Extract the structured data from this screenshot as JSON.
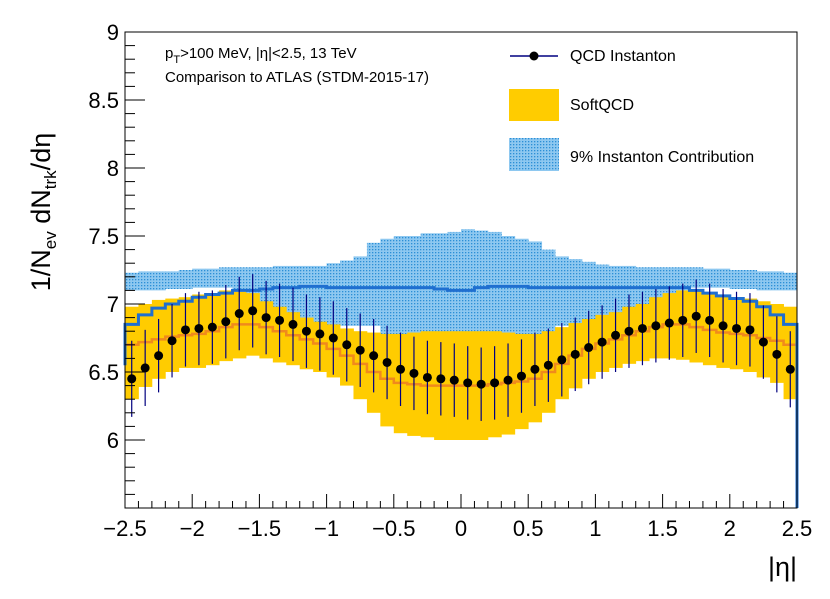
{
  "chart_data": {
    "type": "line",
    "title": "",
    "xlabel": "|η|",
    "ylabel_main": "1/N",
    "ylabel_sub1": "ev",
    "ylabel_mid": " dN",
    "ylabel_sub2": "trk",
    "ylabel_end": "/dη",
    "xlim": [
      -2.5,
      2.5
    ],
    "ylim": [
      5.5,
      9.0
    ],
    "x_ticks": [
      -2.5,
      -2,
      -1.5,
      -1,
      -0.5,
      0,
      0.5,
      1,
      1.5,
      2,
      2.5
    ],
    "x_tick_labels": [
      "−2.5",
      "−2",
      "−1.5",
      "−1",
      "−0.5",
      "0",
      "0.5",
      "1",
      "1.5",
      "2",
      "2.5"
    ],
    "y_ticks": [
      6,
      6.5,
      7,
      7.5,
      8,
      8.5,
      9
    ],
    "y_tick_labels": [
      "6",
      "6.5",
      "7",
      "7.5",
      "8",
      "8.5",
      "9"
    ],
    "annotations": {
      "pt_prefix": "p",
      "pt_sub": "T",
      "pt_rest": ">100 MeV, |η|<2.5, 13 TeV",
      "line2": "Comparison to ATLAS (STDM-2015-17)"
    },
    "legend": [
      {
        "label": "QCD Instanton",
        "color": "#000080"
      },
      {
        "label": "SoftQCD",
        "color": "#ffcc00"
      },
      {
        "label": "9% Instanton Contribution",
        "color": "#4aa3df"
      }
    ],
    "bin_edges_start": -2.5,
    "bin_width": 0.1,
    "series": [
      {
        "name": "QCD Instanton",
        "x": [
          -2.45,
          -2.35,
          -2.25,
          -2.15,
          -2.05,
          -1.95,
          -1.85,
          -1.75,
          -1.65,
          -1.55,
          -1.45,
          -1.35,
          -1.25,
          -1.15,
          -1.05,
          -0.95,
          -0.85,
          -0.75,
          -0.65,
          -0.55,
          -0.45,
          -0.35,
          -0.25,
          -0.15,
          -0.05,
          0.05,
          0.15,
          0.25,
          0.35,
          0.45,
          0.55,
          0.65,
          0.75,
          0.85,
          0.95,
          1.05,
          1.15,
          1.25,
          1.35,
          1.45,
          1.55,
          1.65,
          1.75,
          1.85,
          1.95,
          2.05,
          2.15,
          2.25,
          2.35,
          2.45
        ],
        "values": [
          6.45,
          6.53,
          6.62,
          6.73,
          6.81,
          6.82,
          6.83,
          6.87,
          6.93,
          6.95,
          6.9,
          6.88,
          6.85,
          6.8,
          6.78,
          6.75,
          6.7,
          6.66,
          6.62,
          6.57,
          6.52,
          6.49,
          6.46,
          6.45,
          6.44,
          6.42,
          6.41,
          6.42,
          6.44,
          6.47,
          6.52,
          6.55,
          6.59,
          6.63,
          6.68,
          6.72,
          6.77,
          6.8,
          6.82,
          6.84,
          6.86,
          6.88,
          6.91,
          6.88,
          6.84,
          6.82,
          6.81,
          6.72,
          6.63,
          6.52
        ],
        "errors": [
          0.28,
          0.28,
          0.27,
          0.27,
          0.27,
          0.27,
          0.27,
          0.27,
          0.27,
          0.27,
          0.27,
          0.27,
          0.27,
          0.27,
          0.27,
          0.27,
          0.27,
          0.27,
          0.27,
          0.27,
          0.27,
          0.27,
          0.27,
          0.27,
          0.27,
          0.27,
          0.27,
          0.27,
          0.27,
          0.27,
          0.27,
          0.27,
          0.27,
          0.27,
          0.27,
          0.27,
          0.27,
          0.27,
          0.27,
          0.27,
          0.27,
          0.27,
          0.27,
          0.27,
          0.27,
          0.27,
          0.27,
          0.27,
          0.28,
          0.28
        ]
      },
      {
        "name": "SoftQCD",
        "low": [
          6.3,
          6.39,
          6.45,
          6.5,
          6.53,
          6.53,
          6.55,
          6.58,
          6.6,
          6.62,
          6.6,
          6.57,
          6.55,
          6.52,
          6.5,
          6.46,
          6.4,
          6.3,
          6.2,
          6.1,
          6.05,
          6.03,
          6.02,
          6.0,
          6.0,
          6.0,
          6.0,
          6.02,
          6.04,
          6.08,
          6.13,
          6.2,
          6.3,
          6.38,
          6.45,
          6.5,
          6.53,
          6.56,
          6.58,
          6.6,
          6.6,
          6.59,
          6.57,
          6.55,
          6.53,
          6.52,
          6.5,
          6.46,
          6.42,
          6.3
        ],
        "high": [
          6.98,
          7.0,
          7.03,
          7.04,
          7.05,
          7.07,
          7.08,
          7.1,
          7.09,
          7.08,
          7.02,
          6.98,
          6.94,
          6.9,
          6.87,
          6.85,
          6.82,
          6.8,
          6.79,
          6.78,
          6.78,
          6.79,
          6.8,
          6.8,
          6.8,
          6.8,
          6.8,
          6.8,
          6.79,
          6.78,
          6.78,
          6.8,
          6.83,
          6.86,
          6.89,
          6.92,
          6.94,
          6.98,
          7.0,
          7.05,
          7.08,
          7.1,
          7.1,
          7.08,
          7.06,
          7.05,
          7.04,
          7.02,
          7.0,
          6.98
        ],
        "central": [
          6.7,
          6.72,
          6.74,
          6.76,
          6.77,
          6.78,
          6.8,
          6.83,
          6.85,
          6.85,
          6.83,
          6.8,
          6.77,
          6.74,
          6.71,
          6.67,
          6.62,
          6.56,
          6.5,
          6.45,
          6.42,
          6.41,
          6.4,
          6.4,
          6.4,
          6.4,
          6.4,
          6.41,
          6.42,
          6.43,
          6.45,
          6.5,
          6.56,
          6.62,
          6.67,
          6.71,
          6.74,
          6.77,
          6.8,
          6.83,
          6.85,
          6.85,
          6.83,
          6.81,
          6.79,
          6.78,
          6.77,
          6.75,
          6.73,
          6.7
        ]
      },
      {
        "name": "9% Instanton Contribution",
        "low": [
          7.1,
          7.1,
          7.1,
          7.11,
          7.11,
          7.12,
          7.12,
          7.12,
          7.1,
          7.06,
          7.0,
          6.95,
          6.9,
          6.86,
          6.85,
          6.84,
          6.84,
          6.84,
          6.84,
          6.7,
          6.7,
          6.7,
          6.7,
          6.7,
          6.7,
          6.7,
          6.7,
          6.7,
          6.7,
          6.7,
          6.7,
          6.7,
          6.84,
          6.84,
          6.84,
          6.85,
          6.86,
          6.9,
          6.95,
          7.0,
          7.06,
          7.1,
          7.12,
          7.12,
          7.12,
          7.11,
          7.11,
          7.1,
          7.1,
          7.1
        ],
        "high": [
          7.23,
          7.24,
          7.24,
          7.24,
          7.25,
          7.26,
          7.26,
          7.27,
          7.27,
          7.27,
          7.27,
          7.28,
          7.28,
          7.28,
          7.28,
          7.3,
          7.32,
          7.35,
          7.45,
          7.48,
          7.5,
          7.5,
          7.52,
          7.52,
          7.53,
          7.55,
          7.54,
          7.53,
          7.5,
          7.48,
          7.46,
          7.4,
          7.35,
          7.33,
          7.31,
          7.29,
          7.28,
          7.28,
          7.27,
          7.27,
          7.27,
          7.27,
          7.27,
          7.26,
          7.26,
          7.25,
          7.25,
          7.24,
          7.24,
          7.23
        ],
        "central": [
          6.85,
          6.92,
          6.97,
          7.0,
          7.02,
          7.05,
          7.07,
          7.08,
          7.1,
          7.1,
          7.11,
          7.12,
          7.12,
          7.13,
          7.13,
          7.12,
          7.12,
          7.12,
          7.12,
          7.12,
          7.12,
          7.12,
          7.12,
          7.11,
          7.1,
          7.1,
          7.12,
          7.13,
          7.13,
          7.13,
          7.12,
          7.12,
          7.12,
          7.12,
          7.12,
          7.12,
          7.12,
          7.12,
          7.12,
          7.12,
          7.12,
          7.12,
          7.1,
          7.08,
          7.06,
          7.04,
          7.02,
          6.98,
          6.92,
          6.85
        ]
      }
    ]
  }
}
